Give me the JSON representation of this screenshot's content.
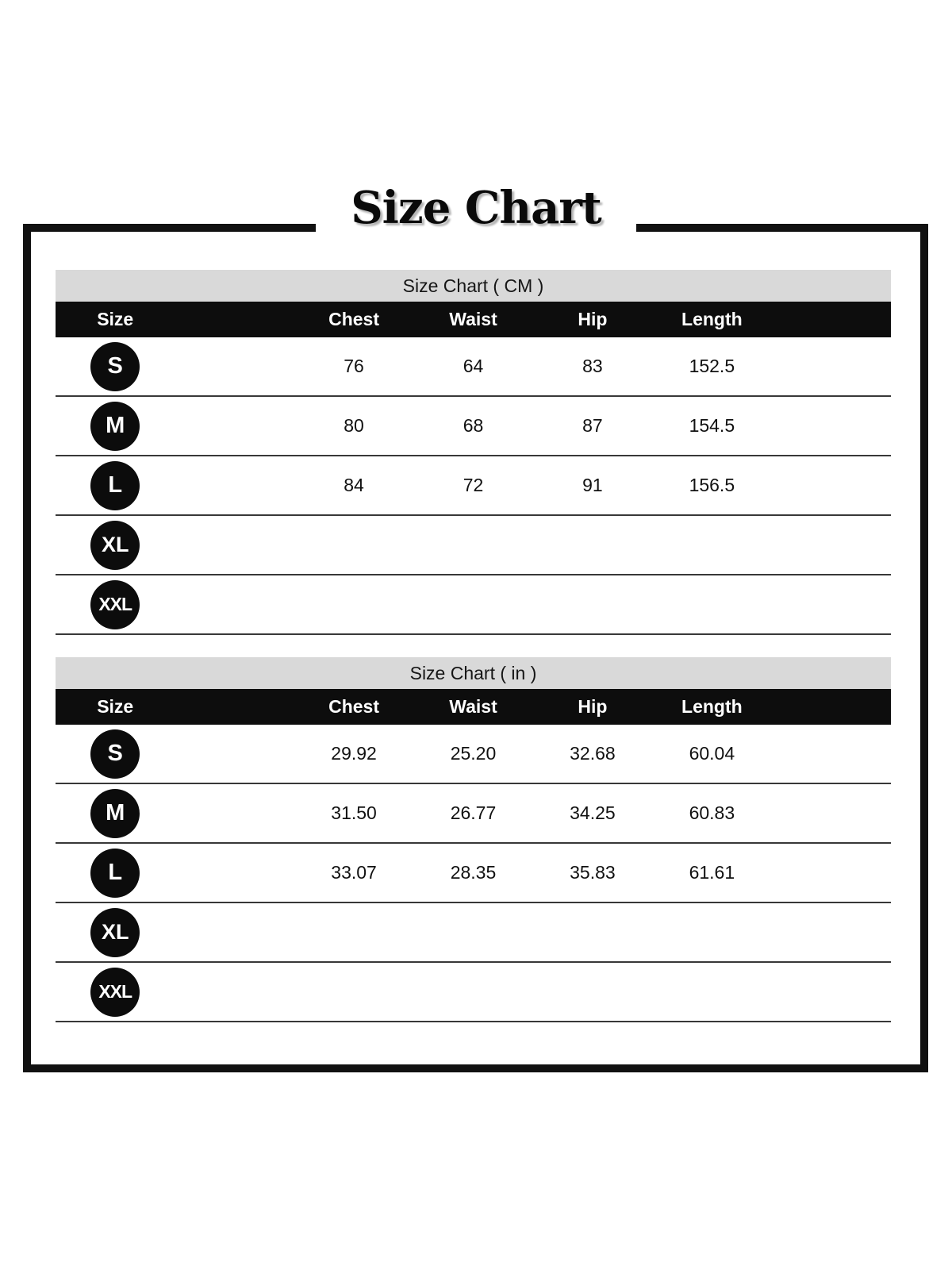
{
  "page_title": "Size Chart",
  "colors": {
    "header_black": "#0d0d0d",
    "caption_gray": "#d9d9d9",
    "divider": "#383838",
    "badge_black": "#0c0c0c",
    "background": "#ffffff"
  },
  "tables": [
    {
      "caption": "Size Chart ( CM )",
      "headers": {
        "size": "Size",
        "chest": "Chest",
        "waist": "Waist",
        "hip": "Hip",
        "length": "Length"
      },
      "rows": [
        {
          "size": "S",
          "chest": "76",
          "waist": "64",
          "hip": "83",
          "length": "152.5"
        },
        {
          "size": "M",
          "chest": "80",
          "waist": "68",
          "hip": "87",
          "length": "154.5"
        },
        {
          "size": "L",
          "chest": "84",
          "waist": "72",
          "hip": "91",
          "length": "156.5"
        },
        {
          "size": "XL",
          "chest": "",
          "waist": "",
          "hip": "",
          "length": ""
        },
        {
          "size": "XXL",
          "chest": "",
          "waist": "",
          "hip": "",
          "length": ""
        }
      ]
    },
    {
      "caption": "Size Chart ( in )",
      "headers": {
        "size": "Size",
        "chest": "Chest",
        "waist": "Waist",
        "hip": "Hip",
        "length": "Length"
      },
      "rows": [
        {
          "size": "S",
          "chest": "29.92",
          "waist": "25.20",
          "hip": "32.68",
          "length": "60.04"
        },
        {
          "size": "M",
          "chest": "31.50",
          "waist": "26.77",
          "hip": "34.25",
          "length": "60.83"
        },
        {
          "size": "L",
          "chest": "33.07",
          "waist": "28.35",
          "hip": "35.83",
          "length": "61.61"
        },
        {
          "size": "XL",
          "chest": "",
          "waist": "",
          "hip": "",
          "length": ""
        },
        {
          "size": "XXL",
          "chest": "",
          "waist": "",
          "hip": "",
          "length": ""
        }
      ]
    }
  ],
  "chart_data": [
    {
      "type": "table",
      "title": "Size Chart ( CM )",
      "columns": [
        "Size",
        "Chest",
        "Waist",
        "Hip",
        "Length"
      ],
      "rows": [
        [
          "S",
          76,
          64,
          83,
          152.5
        ],
        [
          "M",
          80,
          68,
          87,
          154.5
        ],
        [
          "L",
          84,
          72,
          91,
          156.5
        ],
        [
          "XL",
          null,
          null,
          null,
          null
        ],
        [
          "XXL",
          null,
          null,
          null,
          null
        ]
      ]
    },
    {
      "type": "table",
      "title": "Size Chart ( in )",
      "columns": [
        "Size",
        "Chest",
        "Waist",
        "Hip",
        "Length"
      ],
      "rows": [
        [
          "S",
          29.92,
          25.2,
          32.68,
          60.04
        ],
        [
          "M",
          31.5,
          26.77,
          34.25,
          60.83
        ],
        [
          "L",
          33.07,
          28.35,
          35.83,
          61.61
        ],
        [
          "XL",
          null,
          null,
          null,
          null
        ],
        [
          "XXL",
          null,
          null,
          null,
          null
        ]
      ]
    }
  ]
}
